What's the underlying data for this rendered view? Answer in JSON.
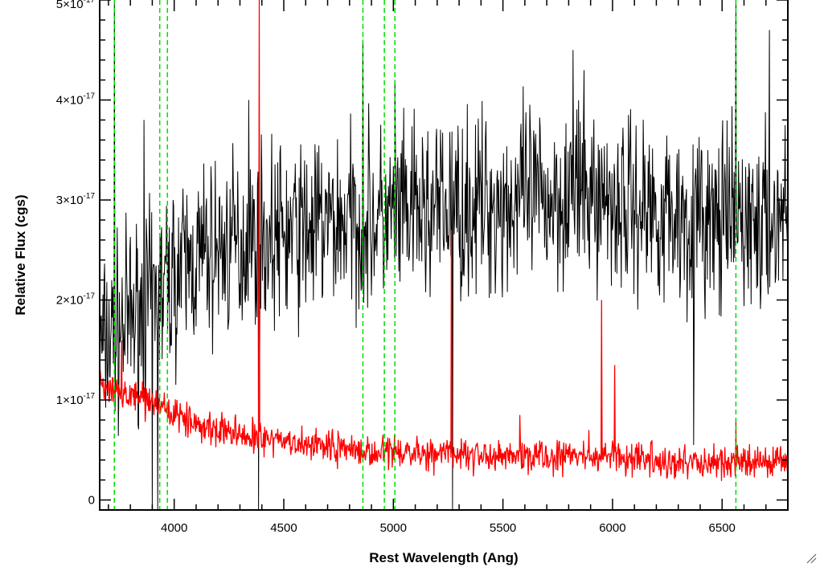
{
  "chart_data": {
    "type": "line",
    "xlabel": "Rest Wavelength (Ang)",
    "ylabel": "Relative Flux (cgs)",
    "xlim": [
      3660,
      6800
    ],
    "ylim": [
      -1e-18,
      5e-17
    ],
    "grid": false,
    "x_ticks": [
      {
        "value": 4000,
        "label": "4000"
      },
      {
        "value": 4500,
        "label": "4500"
      },
      {
        "value": 5000,
        "label": "5000"
      },
      {
        "value": 5500,
        "label": "5500"
      },
      {
        "value": 6000,
        "label": "6000"
      },
      {
        "value": 6500,
        "label": "6500"
      }
    ],
    "y_ticks": [
      {
        "value": 0,
        "mantissa": "0",
        "exponent": ""
      },
      {
        "value": 1e-17,
        "mantissa": "1×10",
        "exponent": "-17"
      },
      {
        "value": 2e-17,
        "mantissa": "2×10",
        "exponent": "-17"
      },
      {
        "value": 3e-17,
        "mantissa": "3×10",
        "exponent": "-17"
      },
      {
        "value": 4e-17,
        "mantissa": "4×10",
        "exponent": "-17"
      },
      {
        "value": 5e-17,
        "mantissa": "5×10",
        "exponent": "-17"
      }
    ],
    "vertical_lines": [
      3727,
      3934,
      3969,
      4861,
      4959,
      5007,
      6563
    ],
    "vertical_line_style": {
      "color": "#00dd00",
      "dash": "dashed"
    },
    "series": [
      {
        "color": "#000000",
        "noise_seed": 7,
        "x": [
          3660,
          3700,
          3750,
          3800,
          3850,
          3900,
          3950,
          4000,
          4100,
          4200,
          4300,
          4400,
          4500,
          4600,
          4700,
          4800,
          4900,
          5000,
          5100,
          5200,
          5300,
          5400,
          5500,
          5600,
          5700,
          5800,
          5900,
          6000,
          6100,
          6200,
          6300,
          6400,
          6500,
          6600,
          6700,
          6800
        ],
        "y": [
          1.5e-17,
          1.6e-17,
          1.7e-17,
          1.8e-17,
          1.9e-17,
          2e-17,
          2.1e-17,
          2.25e-17,
          2.4e-17,
          2.5e-17,
          2.55e-17,
          2.6e-17,
          2.65e-17,
          2.7e-17,
          2.75e-17,
          2.8e-17,
          2.8e-17,
          2.8e-17,
          2.85e-17,
          2.9e-17,
          2.9e-17,
          2.95e-17,
          2.95e-17,
          3e-17,
          3e-17,
          3.1e-17,
          3.05e-17,
          3e-17,
          2.95e-17,
          2.9e-17,
          2.85e-17,
          2.8e-17,
          2.75e-17,
          2.8e-17,
          2.7e-17,
          2.9e-17
        ],
        "noise_amplitude": 4.5e-18,
        "spikes": [
          {
            "x": 3727,
            "y": 5e-17
          },
          {
            "x": 3862,
            "y": 3.8e-17
          },
          {
            "x": 4340,
            "y": 4e-17
          },
          {
            "x": 4861,
            "y": 4.6e-17
          },
          {
            "x": 5007,
            "y": 4.2e-17
          },
          {
            "x": 5820,
            "y": 4.5e-17
          },
          {
            "x": 6563,
            "y": 5e-17
          },
          {
            "x": 6716,
            "y": 4.7e-17
          },
          {
            "x": 3900,
            "y": -1e-18
          },
          {
            "x": 3925,
            "y": -1e-18
          },
          {
            "x": 4385,
            "y": -1e-18
          },
          {
            "x": 5270,
            "y": -1e-18
          },
          {
            "x": 6370,
            "y": 5.5e-18
          }
        ]
      },
      {
        "color": "#ff0000",
        "noise_seed": 13,
        "x": [
          3660,
          3700,
          3800,
          3900,
          4000,
          4100,
          4200,
          4300,
          4400,
          4600,
          4800,
          5000,
          5200,
          5400,
          5600,
          5800,
          6000,
          6200,
          6400,
          6600,
          6800
        ],
        "y": [
          1.1e-17,
          1.08e-17,
          1.05e-17,
          1e-17,
          8.5e-18,
          7.5e-18,
          7e-18,
          6.5e-18,
          6e-18,
          5.5e-18,
          5e-18,
          4.8e-18,
          4.6e-18,
          4.5e-18,
          4.4e-18,
          4.3e-18,
          4.2e-18,
          4e-18,
          3.8e-18,
          3.7e-18,
          3.6e-18
        ],
        "noise_amplitude": 8e-19,
        "spikes": [
          {
            "x": 3760,
            "y": 1.6e-17
          },
          {
            "x": 4388,
            "y": 5e-17
          },
          {
            "x": 5265,
            "y": 2.7e-17
          },
          {
            "x": 5577,
            "y": 8.5e-18
          },
          {
            "x": 5892,
            "y": 7e-18
          },
          {
            "x": 5950,
            "y": 2e-17
          },
          {
            "x": 6010,
            "y": 1.35e-17
          },
          {
            "x": 6563,
            "y": 8e-18
          }
        ]
      }
    ]
  }
}
